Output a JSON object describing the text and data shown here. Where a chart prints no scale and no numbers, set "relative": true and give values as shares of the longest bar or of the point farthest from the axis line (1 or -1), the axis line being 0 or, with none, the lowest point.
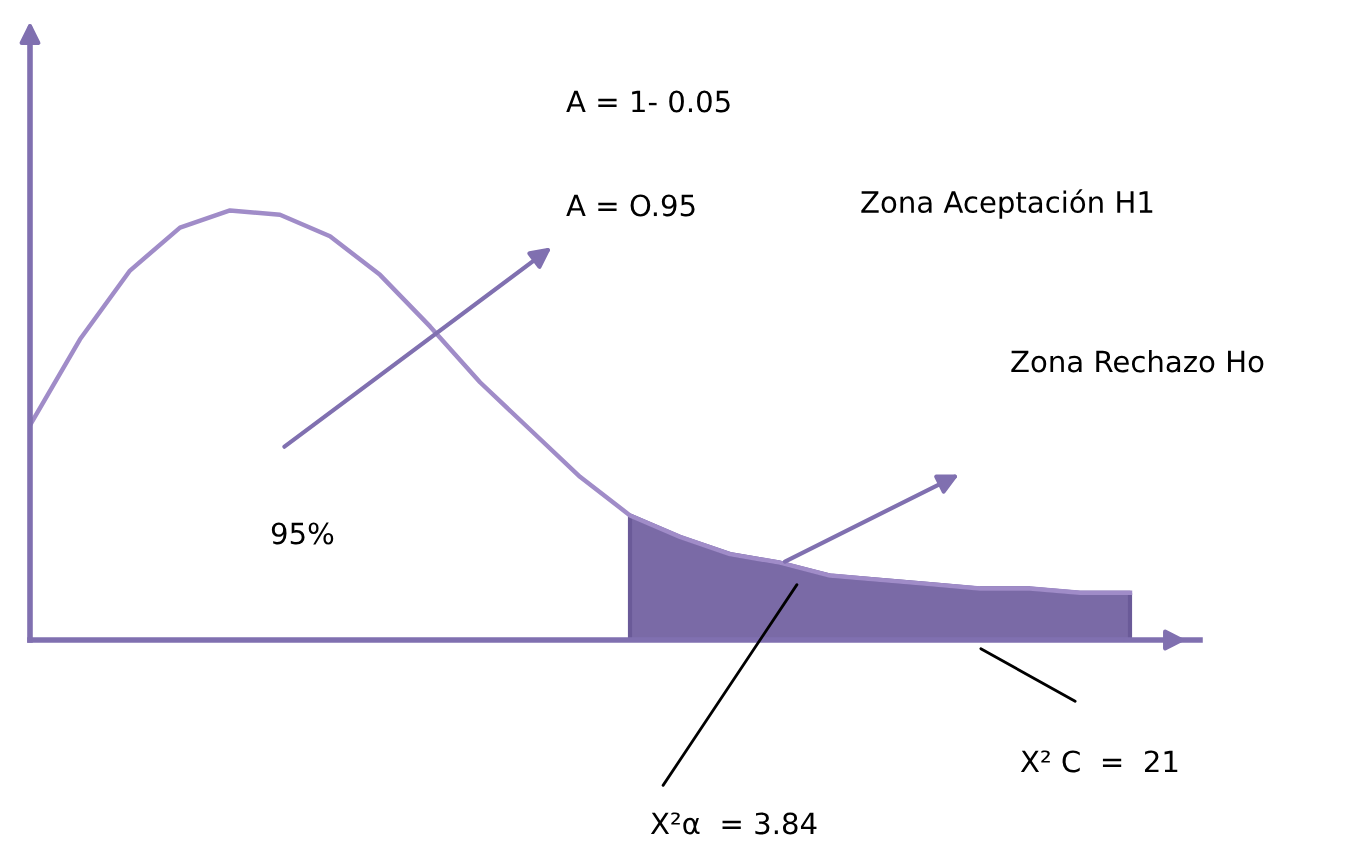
{
  "chart_data": {
    "type": "line",
    "relative": true,
    "categories": [
      null,
      null,
      null,
      null,
      null,
      null,
      null,
      null,
      null,
      null,
      null,
      null,
      null,
      null,
      null,
      null,
      null,
      null,
      null,
      null,
      null,
      null,
      null
    ],
    "series": [
      {
        "color": "#a08cc8",
        "values": [
          0.5,
          0.7,
          0.86,
          0.96,
          1.0,
          0.99,
          0.94,
          0.85,
          0.73,
          0.6,
          0.49,
          0.38,
          0.29,
          0.24,
          0.2,
          0.18,
          0.15,
          0.14,
          0.13,
          0.12,
          0.12,
          0.11,
          0.11
        ]
      },
      {
        "type": "area",
        "color": "#7a6aa6",
        "values": [
          null,
          null,
          null,
          null,
          null,
          null,
          null,
          null,
          null,
          null,
          null,
          null,
          0.29,
          0.24,
          0.2,
          0.18,
          0.15,
          0.14,
          0.13,
          0.12,
          0.12,
          0.11,
          0.11
        ]
      }
    ],
    "annotations": [
      "A = 1- 0.05",
      "A = O.95",
      "Zona Aceptación H1",
      "Zona Rechazo Ho",
      "95%",
      "X²α  = 3.84",
      "X² C  =  21"
    ],
    "grid": false,
    "legend": false,
    "tick_labels": false
  }
}
